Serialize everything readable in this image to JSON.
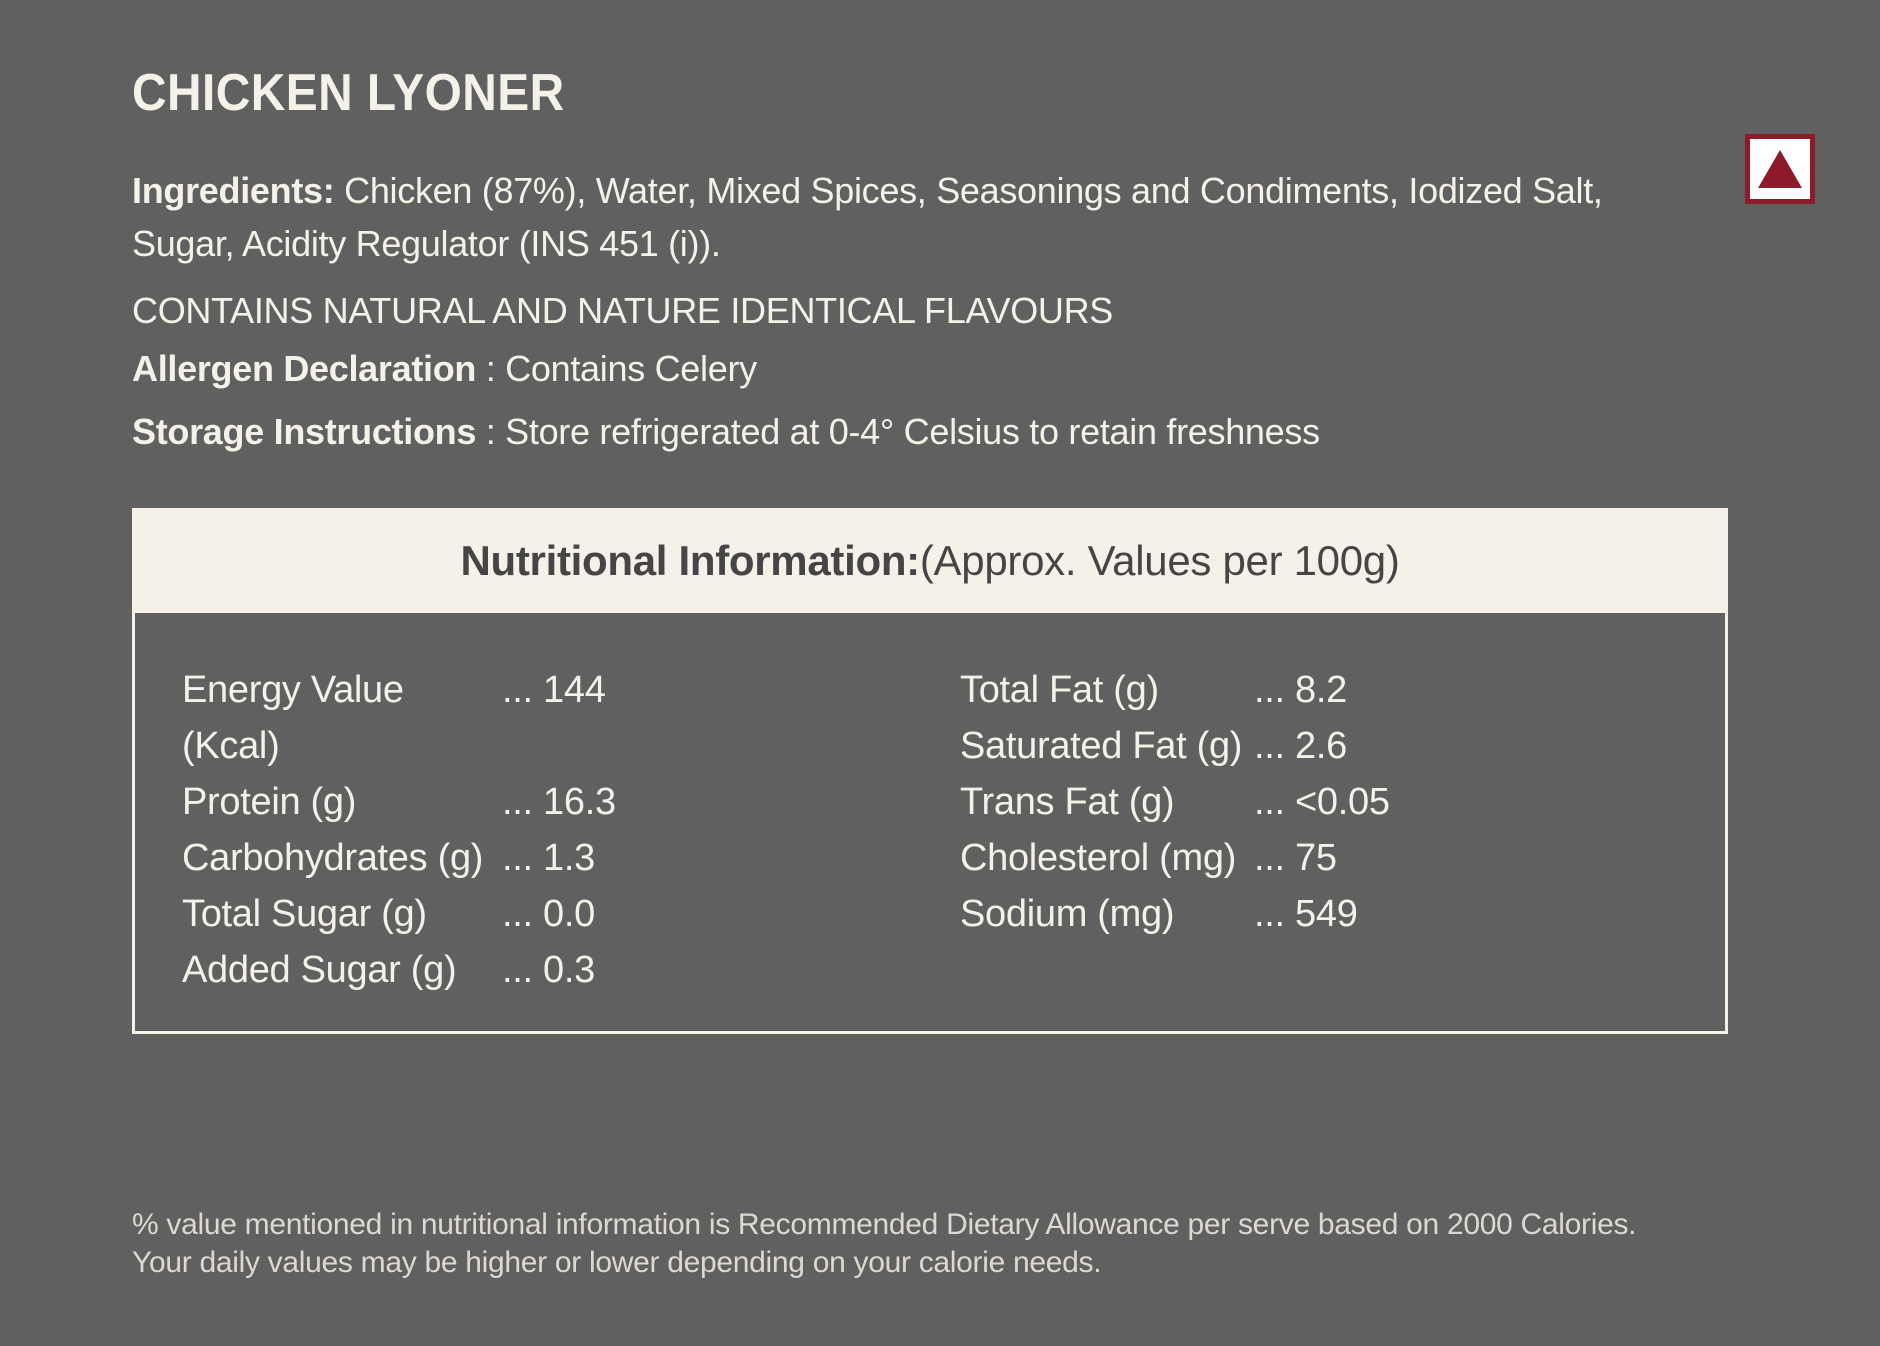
{
  "colors": {
    "background": "#606060",
    "cream": "#f5f1e8",
    "text_cream": "#f4f1e9",
    "dark_text": "#454545",
    "nonveg_maroon": "#8e1b2a"
  },
  "header": {
    "title": "CHICKEN LYONER"
  },
  "product_info": {
    "ingredients_label": "Ingredients:",
    "ingredients_text": " Chicken (87%), Water, Mixed Spices, Seasonings and Condiments, Iodized Salt,\nSugar, Acidity Regulator (INS 451 (i)).",
    "contains_line": "CONTAINS NATURAL AND NATURE IDENTICAL FLAVOURS",
    "allergen_label": "Allergen Declaration",
    "allergen_text": " : Contains Celery",
    "storage_label": "Storage Instructions",
    "storage_text": " : Store refrigerated at 0-4° Celsius to retain freshness"
  },
  "nutrition": {
    "header_bold": "Nutritional Information:",
    "header_normal": " (Approx. Values per 100g)",
    "left_rows": [
      {
        "label": "Energy Value (Kcal)",
        "value": "... 144"
      },
      {
        "label": "Protein (g)",
        "value": "... 16.3"
      },
      {
        "label": "Carbohydrates (g)",
        "value": "... 1.3"
      },
      {
        "label": "Total Sugar (g)",
        "value": "... 0.0"
      },
      {
        "label": "Added Sugar (g)",
        "value": "... 0.3"
      }
    ],
    "right_rows": [
      {
        "label": "Total Fat (g)",
        "value": "... 8.2"
      },
      {
        "label": "Saturated Fat (g)",
        "value": "... 2.6"
      },
      {
        "label": "Trans Fat (g)",
        "value": "... <0.05"
      },
      {
        "label": "Cholesterol (mg)",
        "value": "... 75"
      },
      {
        "label": "Sodium (mg)",
        "value": "... 549"
      }
    ]
  },
  "footer": {
    "note": "% value mentioned in nutritional information is Recommended Dietary Allowance per serve based on 2000 Calories.\nYour daily values may be higher or lower depending on your calorie needs."
  }
}
